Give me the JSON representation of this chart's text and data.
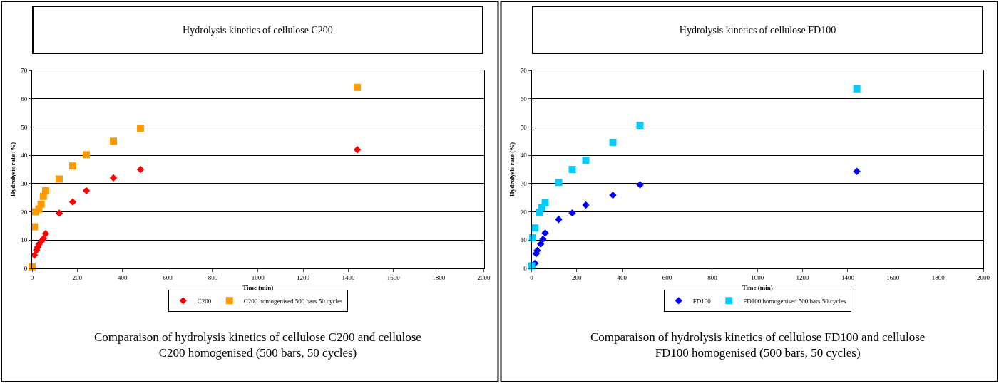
{
  "chart_data": [
    {
      "type": "scatter",
      "title": "Hydrolysis kinetics of cellulose C200",
      "xlabel": "Time (min)",
      "ylabel": "Hydrolysis rate (%)",
      "series": [
        {
          "name": "C200",
          "color": "#ff0000",
          "marker": "diamond",
          "x": [
            10,
            20,
            25,
            30,
            40,
            50,
            60,
            120,
            180,
            240,
            360,
            480,
            1440
          ],
          "values": [
            4.7,
            6.5,
            7.5,
            8.5,
            9.5,
            10.5,
            12.3,
            19.5,
            23.5,
            27.5,
            32,
            35,
            42
          ]
        },
        {
          "name": "C200 homogenised 500 bars 50 cycles",
          "color": "#ff9900",
          "marker": "square",
          "x": [
            0,
            10,
            15,
            30,
            40,
            50,
            60,
            120,
            180,
            240,
            360,
            480,
            1440
          ],
          "values": [
            0.6,
            14.7,
            20,
            21,
            22.7,
            25.5,
            27.5,
            31.6,
            36.2,
            40.2,
            45,
            49.6,
            64
          ]
        }
      ],
      "xlim": [
        0,
        2000
      ],
      "xticks": [
        0,
        200,
        400,
        600,
        800,
        1000,
        1200,
        1400,
        1600,
        1800,
        2000
      ],
      "ylim": [
        0,
        70
      ],
      "yticks": [
        0,
        10,
        20,
        30,
        40,
        50,
        60,
        70
      ],
      "grid": "y",
      "legend": "bottom",
      "annotations": [
        "Comparaison of hydrolysis kinetics of cellulose C200 and cellulose C200 homogenised (500 bars, 50 cycles)"
      ]
    },
    {
      "type": "scatter",
      "title": "Hydrolysis kinetics of cellulose FD100",
      "xlabel": "Time (min)",
      "ylabel": "Hydrolysis rate (%)",
      "series": [
        {
          "name": "FD100",
          "color": "#0000ff",
          "marker": "diamond",
          "x": [
            15,
            20,
            25,
            40,
            50,
            60,
            120,
            180,
            240,
            360,
            480,
            1440
          ],
          "values": [
            1.8,
            5.2,
            6.3,
            8.6,
            10.3,
            12.5,
            17.3,
            19.6,
            22.4,
            25.9,
            29.6,
            34.3
          ]
        },
        {
          "name": "FD100 homogenised 500 bars 50 cycles",
          "color": "#00ccff",
          "marker": "square",
          "x": [
            0,
            5,
            15,
            35,
            45,
            60,
            120,
            180,
            240,
            360,
            480,
            1440
          ],
          "values": [
            0.9,
            10.8,
            14.3,
            19.9,
            21.5,
            23.2,
            30.4,
            35,
            38.2,
            44.6,
            50.6,
            63.5
          ]
        }
      ],
      "xlim": [
        0,
        2000
      ],
      "xticks": [
        0,
        200,
        400,
        600,
        800,
        1000,
        1200,
        1400,
        1600,
        1800,
        2000
      ],
      "ylim": [
        0,
        70
      ],
      "yticks": [
        0,
        10,
        20,
        30,
        40,
        50,
        60,
        70
      ],
      "grid": "y",
      "legend": "bottom",
      "annotations": [
        "Comparaison of hydrolysis kinetics of cellulose FD100 and cellulose FD100 homogenised (500 bars, 50 cycles)"
      ]
    }
  ]
}
